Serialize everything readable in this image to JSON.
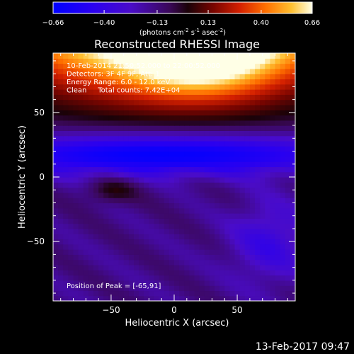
{
  "chart_data": {
    "type": "heatmap",
    "title": "Reconstructed RHESSI Image",
    "xlabel": "Heliocentric X (arcsec)",
    "ylabel": "Heliocentric Y (arcsec)",
    "xlim": [
      -96,
      96
    ],
    "ylim": [
      -96,
      96
    ],
    "x_ticks": [
      -50,
      0,
      50
    ],
    "y_ticks": [
      -50,
      0,
      50
    ],
    "grid": false,
    "colorbar": {
      "range": [
        -0.66,
        0.66
      ],
      "ticks": [
        "-0.66",
        "-0.40",
        "-0.13",
        "0.13",
        "0.40",
        "0.66"
      ],
      "unit_base": "(photons cm",
      "unit_exp1": "-2",
      "unit_mid": " s",
      "unit_exp2": "-1",
      "unit_end": " asec",
      "unit_exp3": "-2",
      "unit_close": ")"
    },
    "annotations": [
      "10-Feb-2014 21:50:52.000 to 22:00:52.000",
      "Detectors: 3F 4F 9F, Att: 1",
      "Energy Range: 6.0 - 12.0 keV",
      "Clean     Total counts: 7.42E+04"
    ],
    "peak_label": "Position of Peak = [-65,91]",
    "peak": {
      "x": -65,
      "y": 91,
      "value": 0.66
    },
    "image_features": [
      {
        "name": "bright arc",
        "x": 0,
        "y": 140,
        "sx": 150,
        "sy": 70,
        "amp": 1.35
      },
      {
        "name": "bright core",
        "x": 20,
        "y": 95,
        "sx": 50,
        "sy": 28,
        "amp": 0.45
      },
      {
        "name": "dark trough",
        "x": -10,
        "y": 18,
        "sx": 150,
        "sy": 16,
        "amp": -0.55
      },
      {
        "name": "red blob",
        "x": -50,
        "y": -10,
        "sx": 20,
        "sy": 10,
        "amp": 0.18
      },
      {
        "name": "blue patch",
        "x": 75,
        "y": -50,
        "sx": 30,
        "sy": 32,
        "amp": -0.22
      }
    ],
    "background_value": -0.15
  },
  "footer": {
    "date": "13-Feb-2017 09:47"
  },
  "colors": {
    "background": "#000000",
    "foreground": "#ffffff"
  }
}
